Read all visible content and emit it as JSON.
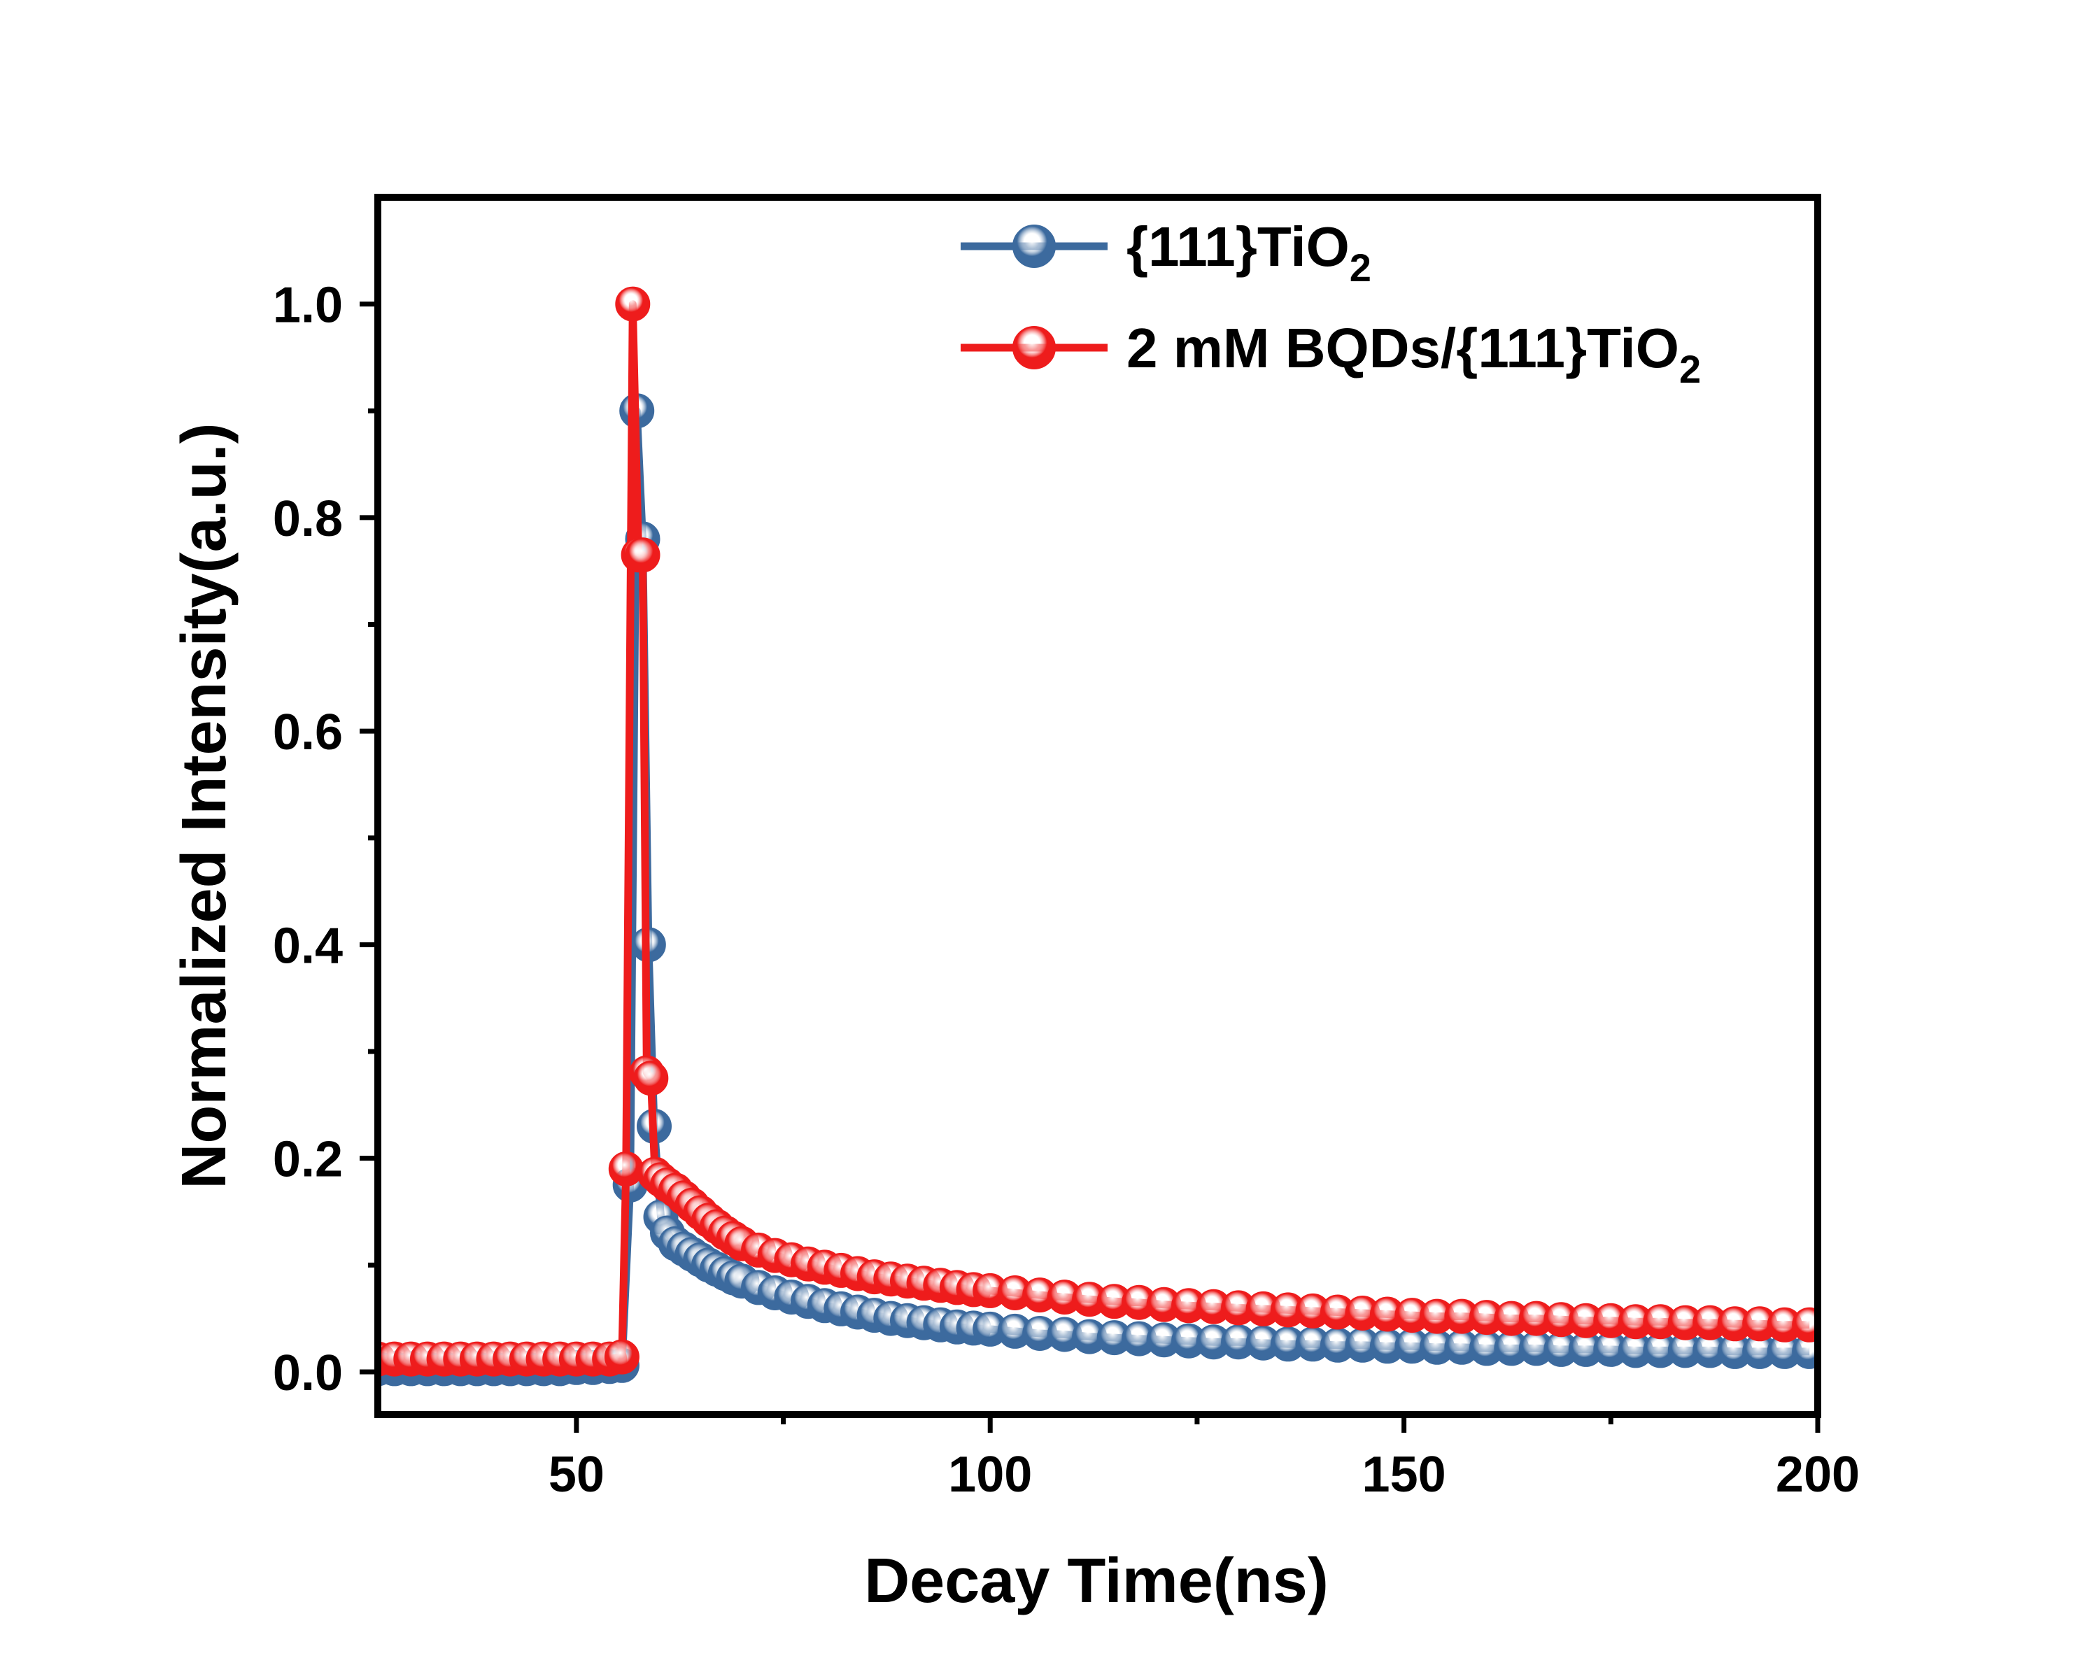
{
  "chart_data": {
    "type": "scatter",
    "xlabel": "Decay Time(ns)",
    "ylabel": "Normalized Intensity(a.u.)",
    "xlim": [
      26,
      200
    ],
    "ylim": [
      -0.04,
      1.1
    ],
    "xticks": [
      50,
      100,
      150,
      200
    ],
    "yticks": [
      0.0,
      0.2,
      0.4,
      0.6,
      0.8,
      1.0
    ],
    "legend_position": "top-right",
    "grid": false,
    "series": [
      {
        "name": "{111}TiO",
        "name_subscript": "2",
        "color": "#3C6A9E",
        "x": [
          26,
          28,
          30,
          32,
          34,
          36,
          38,
          40,
          42,
          44,
          46,
          48,
          50,
          52,
          54,
          55.5,
          56.5,
          57.3,
          58.0,
          58.7,
          59.4,
          60.2,
          61,
          62,
          63,
          64,
          65,
          66,
          67,
          68,
          69,
          70,
          72,
          74,
          76,
          78,
          80,
          82,
          84,
          86,
          88,
          90,
          92,
          94,
          96,
          98,
          100,
          103,
          106,
          109,
          112,
          115,
          118,
          121,
          124,
          127,
          130,
          133,
          136,
          139,
          142,
          145,
          148,
          151,
          154,
          157,
          160,
          163,
          166,
          169,
          172,
          175,
          178,
          181,
          184,
          187,
          190,
          193,
          196,
          199
        ],
        "y": [
          0.003,
          0.003,
          0.003,
          0.003,
          0.003,
          0.003,
          0.003,
          0.003,
          0.003,
          0.003,
          0.003,
          0.003,
          0.004,
          0.004,
          0.005,
          0.006,
          0.175,
          0.9,
          0.78,
          0.4,
          0.23,
          0.145,
          0.13,
          0.12,
          0.115,
          0.11,
          0.105,
          0.1,
          0.096,
          0.092,
          0.088,
          0.085,
          0.079,
          0.074,
          0.07,
          0.066,
          0.062,
          0.059,
          0.056,
          0.053,
          0.05,
          0.048,
          0.046,
          0.044,
          0.042,
          0.041,
          0.04,
          0.038,
          0.036,
          0.035,
          0.033,
          0.032,
          0.031,
          0.03,
          0.029,
          0.028,
          0.028,
          0.027,
          0.026,
          0.026,
          0.025,
          0.025,
          0.024,
          0.024,
          0.023,
          0.023,
          0.022,
          0.022,
          0.022,
          0.021,
          0.021,
          0.021,
          0.02,
          0.02,
          0.02,
          0.02,
          0.019,
          0.019,
          0.019,
          0.019
        ]
      },
      {
        "name": "2 mM BQDs/{111}TiO",
        "name_subscript": "2",
        "color": "#EE1C1C",
        "x": [
          26,
          28,
          30,
          32,
          34,
          36,
          38,
          40,
          42,
          44,
          46,
          48,
          50,
          52,
          54,
          55.5,
          56.0,
          56.8,
          57.5,
          58.0,
          58.5,
          59.0,
          59.5,
          60.2,
          61,
          62,
          63,
          64,
          65,
          66,
          67,
          68,
          69,
          70,
          72,
          74,
          76,
          78,
          80,
          82,
          84,
          86,
          88,
          90,
          92,
          94,
          96,
          98,
          100,
          103,
          106,
          109,
          112,
          115,
          118,
          121,
          124,
          127,
          130,
          133,
          136,
          139,
          142,
          145,
          148,
          151,
          154,
          157,
          160,
          163,
          166,
          169,
          172,
          175,
          178,
          181,
          184,
          187,
          190,
          193,
          196,
          199
        ],
        "y": [
          0.012,
          0.012,
          0.012,
          0.012,
          0.012,
          0.012,
          0.012,
          0.012,
          0.012,
          0.012,
          0.012,
          0.012,
          0.012,
          0.012,
          0.012,
          0.014,
          0.19,
          1.0,
          0.765,
          0.765,
          0.28,
          0.275,
          0.185,
          0.18,
          0.175,
          0.17,
          0.163,
          0.156,
          0.149,
          0.142,
          0.136,
          0.13,
          0.125,
          0.12,
          0.114,
          0.109,
          0.105,
          0.101,
          0.098,
          0.095,
          0.092,
          0.089,
          0.087,
          0.085,
          0.083,
          0.081,
          0.079,
          0.077,
          0.076,
          0.074,
          0.072,
          0.07,
          0.068,
          0.066,
          0.065,
          0.063,
          0.062,
          0.061,
          0.06,
          0.059,
          0.058,
          0.057,
          0.056,
          0.055,
          0.054,
          0.053,
          0.052,
          0.052,
          0.051,
          0.05,
          0.05,
          0.049,
          0.048,
          0.048,
          0.047,
          0.047,
          0.046,
          0.046,
          0.045,
          0.045,
          0.044,
          0.044
        ]
      }
    ]
  }
}
